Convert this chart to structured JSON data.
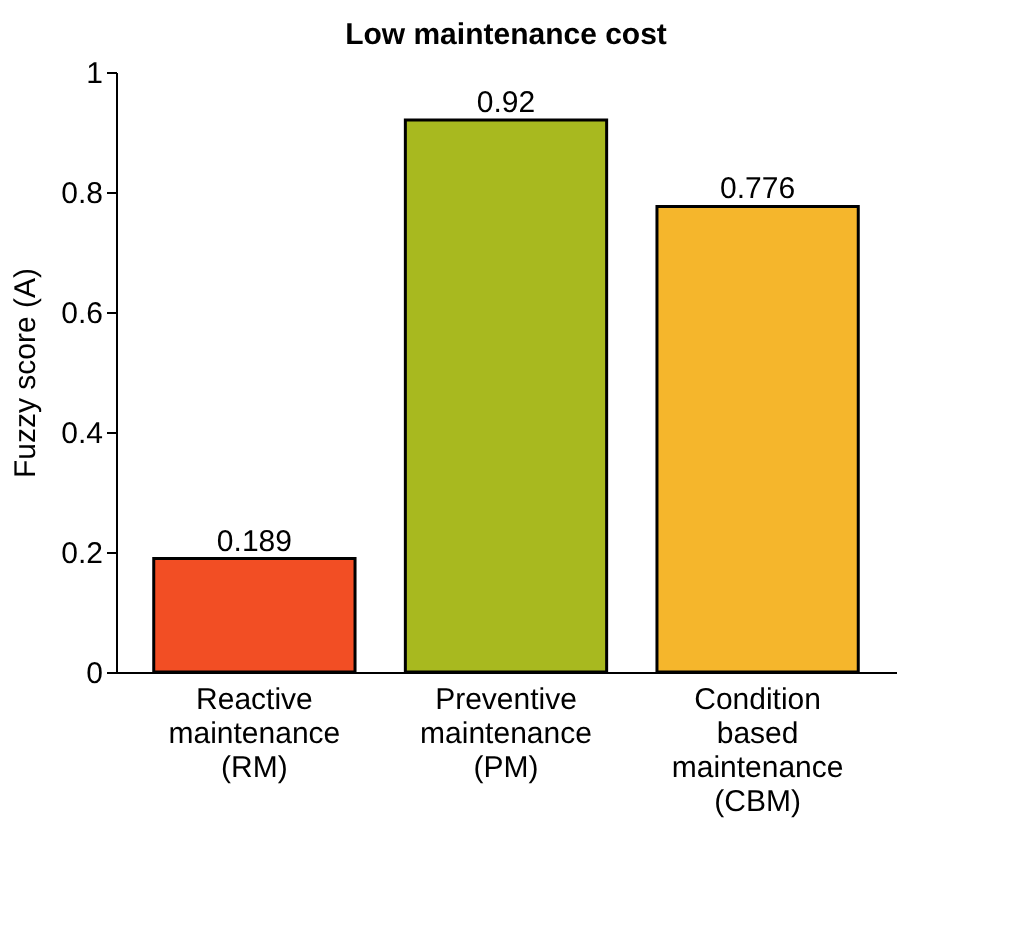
{
  "chart_data": {
    "type": "bar",
    "title": "Low maintenance cost",
    "ylabel": "Fuzzy score (A)",
    "categories": [
      "Reactive maintenance (RM)",
      "Preventive maintenance (PM)",
      "Condition based maintenance (CBM)"
    ],
    "values": [
      0.189,
      0.92,
      0.776
    ],
    "colors": [
      "#f24e24",
      "#a8b91f",
      "#f5b62c"
    ],
    "ylim": [
      0,
      1
    ],
    "yticks": [
      0,
      0.2,
      0.4,
      0.6,
      0.8,
      1
    ],
    "grid": false,
    "data_labels": true
  }
}
